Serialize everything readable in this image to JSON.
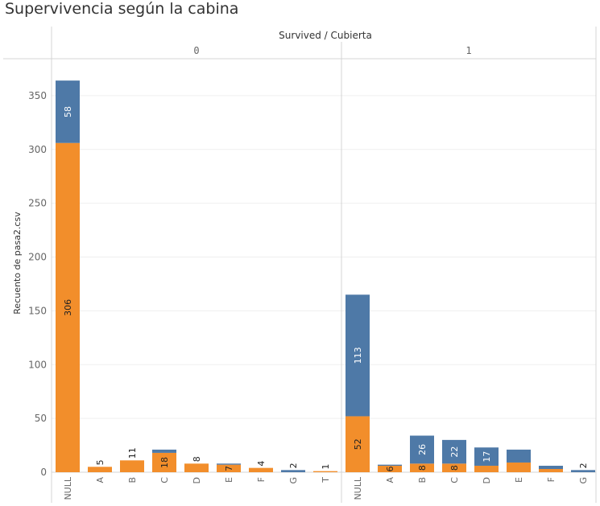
{
  "page": {
    "title": "Supervivencia según la cabina"
  },
  "chart_data": {
    "type": "bar",
    "stacked": true,
    "title": "Supervivencia según la cabina",
    "header": "Survived / Cubierta",
    "ylabel": "Recuento de pasa2.csv",
    "ylim": [
      0,
      375
    ],
    "yticks": [
      0,
      50,
      100,
      150,
      200,
      250,
      300,
      350
    ],
    "grid": true,
    "colors": {
      "orange": "#F28E2B",
      "blue": "#4E79A7"
    },
    "panels": [
      {
        "label": "0",
        "categories": [
          "NULL",
          "A",
          "B",
          "C",
          "D",
          "E",
          "F",
          "G",
          "T"
        ],
        "orange": [
          306,
          5,
          11,
          18,
          8,
          7,
          4,
          0,
          1
        ],
        "blue": [
          58,
          0,
          0,
          3,
          0,
          1,
          0,
          2,
          0
        ],
        "labels": [
          {
            "category": "NULL",
            "part": "blue",
            "text": "58"
          },
          {
            "category": "NULL",
            "part": "orange",
            "text": "306"
          },
          {
            "category": "A",
            "part": "top",
            "text": "5"
          },
          {
            "category": "B",
            "part": "top",
            "text": "11"
          },
          {
            "category": "C",
            "part": "orange",
            "text": "18"
          },
          {
            "category": "D",
            "part": "top",
            "text": "8"
          },
          {
            "category": "E",
            "part": "orange",
            "text": "7"
          },
          {
            "category": "F",
            "part": "top",
            "text": "4"
          },
          {
            "category": "G",
            "part": "top",
            "text": "2"
          },
          {
            "category": "T",
            "part": "top",
            "text": "1"
          }
        ]
      },
      {
        "label": "1",
        "categories": [
          "NULL",
          "A",
          "B",
          "C",
          "D",
          "E",
          "F",
          "G"
        ],
        "orange": [
          52,
          6,
          8,
          8,
          6,
          9,
          3,
          0
        ],
        "blue": [
          113,
          1,
          26,
          22,
          17,
          12,
          3,
          2
        ],
        "labels": [
          {
            "category": "NULL",
            "part": "blue",
            "text": "113"
          },
          {
            "category": "NULL",
            "part": "orange",
            "text": "52"
          },
          {
            "category": "A",
            "part": "orange",
            "text": "6"
          },
          {
            "category": "B",
            "part": "blue",
            "text": "26"
          },
          {
            "category": "B",
            "part": "orange",
            "text": "8"
          },
          {
            "category": "C",
            "part": "blue",
            "text": "22"
          },
          {
            "category": "C",
            "part": "orange",
            "text": "8"
          },
          {
            "category": "D",
            "part": "blue",
            "text": "17"
          },
          {
            "category": "G",
            "part": "top",
            "text": "2"
          }
        ]
      }
    ]
  }
}
